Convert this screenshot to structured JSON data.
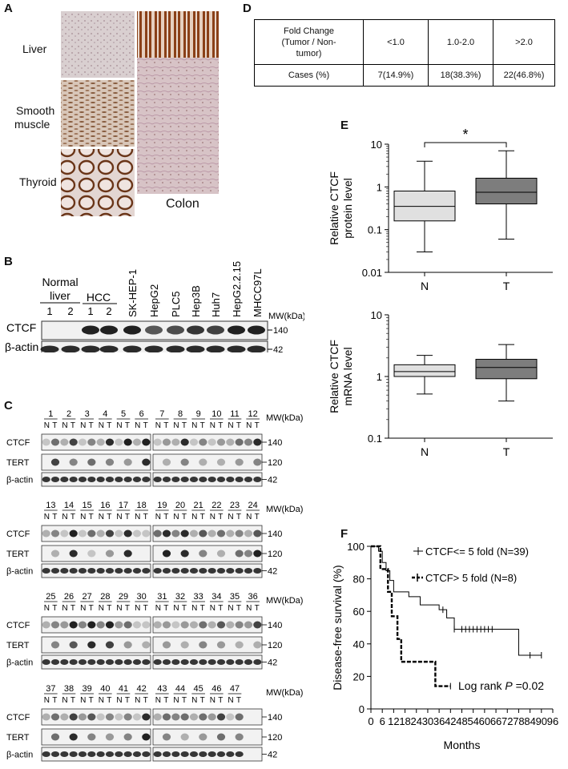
{
  "panelA": {
    "label": "A",
    "tissues": [
      "Liver",
      "Smooth",
      "muscle",
      "Thyroid",
      "Colon"
    ]
  },
  "panelB": {
    "label": "B",
    "normal_liver_1": "Normal",
    "normal_liver_2": "liver",
    "hcc": "HCC",
    "sample_nums": [
      "1",
      "2",
      "1",
      "2"
    ],
    "cell_lines": [
      "SK-HEP-1",
      "HepG2",
      "PLC5",
      "Hep3B",
      "Huh7",
      "HepG2.2.15",
      "MHCC97L"
    ],
    "mw_label": "MW(kDa)",
    "rows": [
      {
        "name": "CTCF",
        "mw": "140"
      },
      {
        "name": "β-actin",
        "mw": "42"
      }
    ]
  },
  "panelC": {
    "label": "C",
    "mw_label": "MW(kDa)",
    "n_label": "N",
    "t_label": "T",
    "row_names": [
      "CTCF",
      "TERT",
      "β-actin"
    ],
    "row_mw": [
      "140",
      "120",
      "42"
    ],
    "groups": [
      [
        "1",
        "2",
        "3",
        "4",
        "5",
        "6",
        "7",
        "8",
        "9",
        "10",
        "11",
        "12"
      ],
      [
        "13",
        "14",
        "15",
        "16",
        "17",
        "18",
        "19",
        "20",
        "21",
        "22",
        "23",
        "24"
      ],
      [
        "25",
        "26",
        "27",
        "28",
        "29",
        "30",
        "31",
        "32",
        "33",
        "34",
        "35",
        "36"
      ],
      [
        "37",
        "38",
        "39",
        "40",
        "41",
        "42",
        "43",
        "44",
        "45",
        "46",
        "47"
      ]
    ]
  },
  "panelD": {
    "label": "D",
    "header": [
      "Fold Change (Tumor / Non-tumor)",
      "<1.0",
      "1.0-2.0",
      ">2.0"
    ],
    "header_lines": [
      "Fold Change",
      "(Tumor / Non-",
      "tumor)"
    ],
    "row_label": "Cases (%)",
    "row_values": [
      "7(14.9%)",
      "18(38.3%)",
      "22(46.8%)"
    ]
  },
  "panelE": {
    "label": "E",
    "significance": "*",
    "chart_data": [
      {
        "type": "box",
        "ylabel": "Relative CTCF protein level",
        "ylabel_lines": [
          "Relative CTCF",
          "protein level"
        ],
        "yscale": "log",
        "ylim": [
          0.01,
          10
        ],
        "ytick_labels": [
          "10",
          "1",
          "0.1",
          "0.01"
        ],
        "categories": [
          "N",
          "T"
        ],
        "boxes": [
          {
            "name": "N",
            "min": 0.03,
            "q1": 0.16,
            "median": 0.35,
            "q3": 0.8,
            "max": 4.0,
            "color": "#e0e0e0"
          },
          {
            "name": "T",
            "min": 0.06,
            "q1": 0.4,
            "median": 0.75,
            "q3": 1.6,
            "max": 7.0,
            "color": "#7d7d7d"
          }
        ]
      },
      {
        "type": "box",
        "ylabel": "Relative CTCF mRNA level",
        "ylabel_lines": [
          "Relative CTCF",
          "mRNA level"
        ],
        "yscale": "log",
        "ylim": [
          0.1,
          10
        ],
        "ytick_labels": [
          "10",
          "1",
          "0.1"
        ],
        "categories": [
          "N",
          "T"
        ],
        "boxes": [
          {
            "name": "N",
            "min": 0.52,
            "q1": 1.0,
            "median": 1.2,
            "q3": 1.55,
            "max": 2.2,
            "color": "#e0e0e0"
          },
          {
            "name": "T",
            "min": 0.4,
            "q1": 0.92,
            "median": 1.4,
            "q3": 1.9,
            "max": 3.3,
            "color": "#7d7d7d"
          }
        ]
      }
    ]
  },
  "panelF": {
    "label": "F",
    "chart_data": {
      "type": "line",
      "title": "",
      "xlabel": "Months",
      "ylabel": "Disease-free survival (%)",
      "xlim": [
        0,
        96
      ],
      "ylim": [
        0,
        100
      ],
      "xticks": [
        0,
        6,
        12,
        18,
        24,
        30,
        36,
        42,
        48,
        54,
        60,
        66,
        72,
        78,
        84,
        90,
        96
      ],
      "yticks": [
        0,
        20,
        40,
        60,
        80,
        100
      ],
      "legend_placement": "top-right",
      "series": [
        {
          "name": "CTCF<= 5 fold (N=39)",
          "style": "solid",
          "x": [
            0,
            2,
            4,
            6,
            8,
            10,
            12,
            20,
            26,
            34,
            36,
            40,
            44,
            78,
            90
          ],
          "y": [
            100,
            100,
            97,
            90,
            85,
            79,
            72,
            69,
            64,
            64,
            61,
            56,
            49,
            33,
            33
          ],
          "censor_x": [
            38,
            44,
            48,
            50,
            52,
            54,
            56,
            58,
            60,
            62,
            64,
            84,
            90
          ]
        },
        {
          "name": "CTCF> 5 fold (N=8)",
          "style": "dashed",
          "x": [
            0,
            3,
            5,
            7,
            9,
            11,
            14,
            16,
            31,
            34,
            42
          ],
          "y": [
            100,
            100,
            86,
            86,
            72,
            57,
            43,
            29,
            29,
            14,
            14
          ],
          "censor_x": [
            42
          ]
        }
      ],
      "annotation": "Log rank P =0.02",
      "annotation_parts": [
        "Log rank ",
        "P",
        " =0.02"
      ]
    }
  }
}
